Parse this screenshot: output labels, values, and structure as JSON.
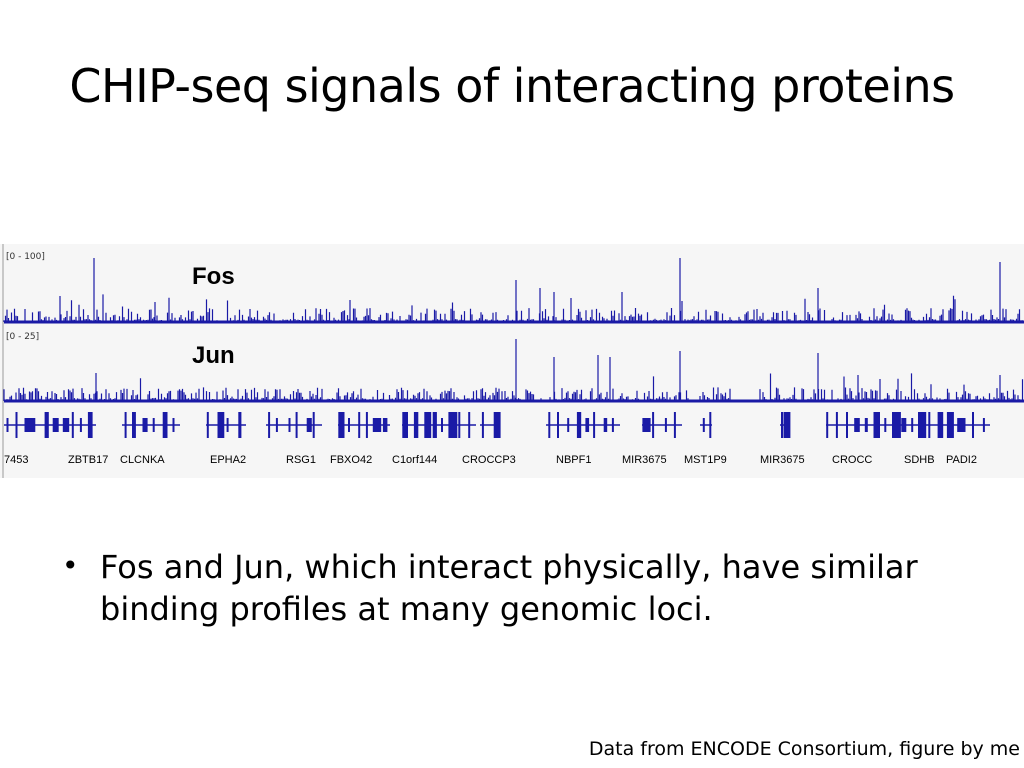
{
  "slide": {
    "title": "CHIP-seq signals of interacting proteins",
    "bullet_symbol": "•",
    "bullet": "Fos and Jun, which interact physically, have similar binding profiles at many genomic loci.",
    "credit": "Data from ENCODE Consortium, figure by me"
  },
  "figure": {
    "signal_color": "#1a1aa6",
    "tracks": [
      {
        "name": "Fos",
        "range": "[0 - 100]"
      },
      {
        "name": "Jun",
        "range": "[0 - 25]"
      }
    ],
    "genes": [
      "7453",
      "ZBTB17",
      "CLCNKA",
      "EPHA2",
      "RSG1",
      "FBXO42",
      "C1orf144",
      "CROCCP3",
      "NBPF1",
      "MIR3675",
      "MST1P9",
      "MIR3675",
      "CROCC",
      "SDHB",
      "PADI2"
    ]
  }
}
